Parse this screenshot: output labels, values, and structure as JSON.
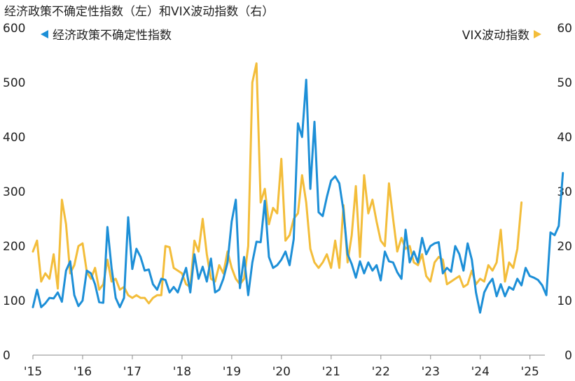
{
  "chart_data": {
    "type": "line",
    "title": "经济政策不确定性指数（左）和VIX波动指数（右）",
    "x_labels": [
      "'15",
      "'16",
      "'17",
      "'18",
      "'19",
      "'20",
      "'21",
      "'22",
      "'23",
      "'24",
      "'25"
    ],
    "y_left_ticks": [
      "600",
      "500",
      "400",
      "300",
      "200",
      "100",
      "0"
    ],
    "y_right_ticks": [
      "60",
      "50",
      "40",
      "30",
      "20",
      "10",
      "0"
    ],
    "ylim_left": [
      0,
      600
    ],
    "ylim_right": [
      0,
      60
    ],
    "xlim": [
      2015,
      2025.3
    ],
    "colors": {
      "epu": "#1d8fd7",
      "vix": "#f3bd3a"
    },
    "series": [
      {
        "name": "经济政策不确定性指数",
        "axis": "left",
        "x_start": 2015,
        "x_step": 0.0833,
        "values": [
          88,
          120,
          88,
          95,
          105,
          104,
          115,
          98,
          155,
          172,
          110,
          90,
          100,
          155,
          150,
          130,
          97,
          96,
          235,
          160,
          105,
          88,
          105,
          253,
          158,
          195,
          180,
          155,
          157,
          130,
          120,
          140,
          138,
          115,
          125,
          115,
          138,
          160,
          115,
          185,
          140,
          162,
          135,
          177,
          115,
          120,
          140,
          170,
          245,
          285,
          123,
          180,
          110,
          170,
          208,
          207,
          283,
          180,
          160,
          165,
          175,
          190,
          165,
          213,
          425,
          400,
          505,
          305,
          428,
          262,
          255,
          290,
          320,
          328,
          315,
          265,
          185,
          167,
          142,
          172,
          150,
          170,
          155,
          165,
          137,
          190,
          172,
          170,
          152,
          140,
          230,
          170,
          190,
          170,
          215,
          185,
          200,
          205,
          207,
          150,
          160,
          153,
          200,
          185,
          155,
          205,
          175,
          115,
          78,
          115,
          130,
          140,
          108,
          130,
          108,
          125,
          120,
          140,
          128,
          160,
          145,
          142,
          138,
          128,
          110,
          225,
          220,
          237,
          334
        ]
      },
      {
        "name": "VIX波动指数",
        "axis": "right",
        "x_start": 2015,
        "x_step": 0.0833,
        "values": [
          19,
          21,
          13.5,
          15,
          14,
          18.5,
          12.2,
          28.5,
          24,
          15,
          16.5,
          20,
          20.5,
          15.3,
          14,
          16,
          12,
          13,
          17.5,
          13.5,
          14,
          12,
          12.5,
          11,
          10.5,
          11,
          10.5,
          10.5,
          9.5,
          10.5,
          11,
          11,
          20,
          19.8,
          16,
          15.5,
          15,
          13,
          12.5,
          21,
          19,
          25,
          18.5,
          14,
          13.5,
          16.5,
          15,
          19,
          16,
          14,
          13,
          14,
          20,
          50,
          53.5,
          28,
          30.5,
          24,
          27,
          26,
          36,
          21,
          22,
          25,
          26,
          33,
          28,
          19.5,
          17,
          16,
          17,
          18.5,
          16,
          21,
          16,
          27.5,
          17,
          22,
          31,
          18,
          33,
          26,
          28.5,
          24.5,
          21,
          20,
          31.5,
          25,
          19,
          21.5,
          19.5,
          20,
          17,
          16.5,
          18.5,
          14.5,
          13.5,
          17,
          18,
          17.5,
          13,
          13.5,
          14,
          14.5,
          12.5,
          13,
          15.5,
          13,
          14,
          13.5,
          16.5,
          15.5,
          17,
          23,
          13.5,
          17,
          16,
          19.5,
          28
        ]
      }
    ]
  }
}
